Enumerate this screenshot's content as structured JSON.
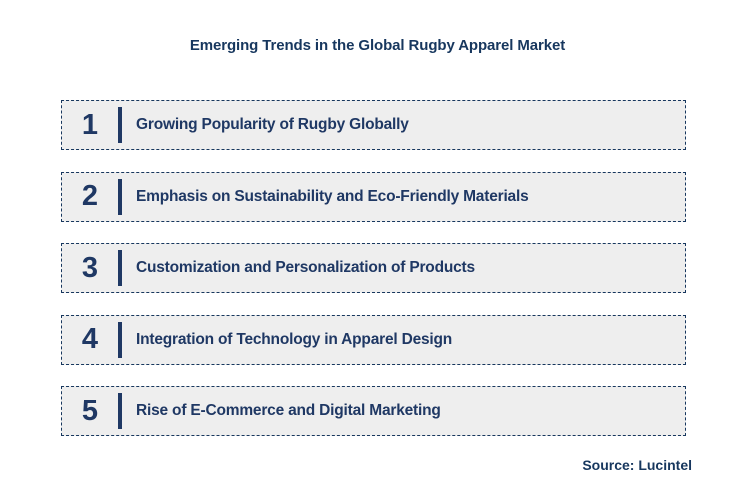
{
  "title": "Emerging Trends in the Global Rugby Apparel Market",
  "source": "Source: Lucintel",
  "colors": {
    "navy_text": "#1F3864",
    "navy_border": "#17375E",
    "box_background": "#EEEEEE",
    "page_background": "#FFFFFF"
  },
  "trends": [
    {
      "number": "1",
      "label": "Growing Popularity of Rugby Globally"
    },
    {
      "number": "2",
      "label": "Emphasis on Sustainability and Eco-Friendly Materials"
    },
    {
      "number": "3",
      "label": "Customization and Personalization of Products"
    },
    {
      "number": "4",
      "label": "Integration of Technology in Apparel Design"
    },
    {
      "number": "5",
      "label": "Rise of E-Commerce and Digital Marketing"
    }
  ]
}
